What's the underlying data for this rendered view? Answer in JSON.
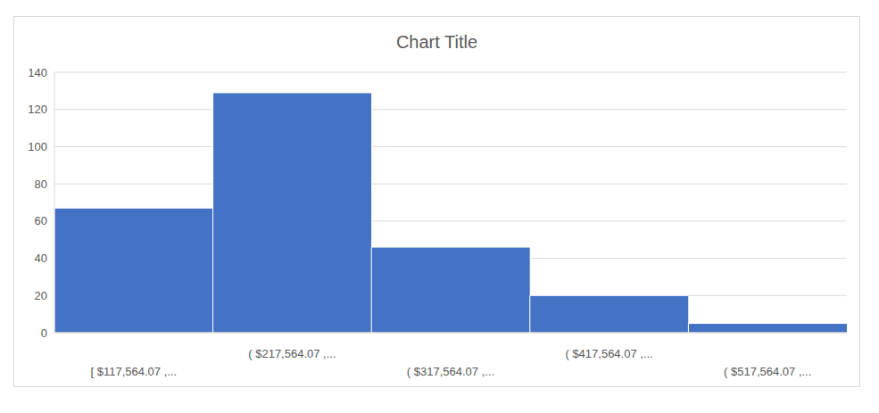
{
  "chart_data": {
    "type": "bar",
    "title": "Chart Title",
    "categories": [
      "[ $117,564.07 ,...",
      "( $217,564.07 ,...",
      "( $317,564.07 ,...",
      "( $417,564.07 ,...",
      "( $517,564.07 ,..."
    ],
    "values": [
      67,
      129,
      46,
      20,
      5
    ],
    "color": "#4472c4",
    "ylim": [
      0,
      140
    ],
    "yticks": [
      0,
      20,
      40,
      60,
      80,
      100,
      120,
      140
    ],
    "grid": true
  }
}
